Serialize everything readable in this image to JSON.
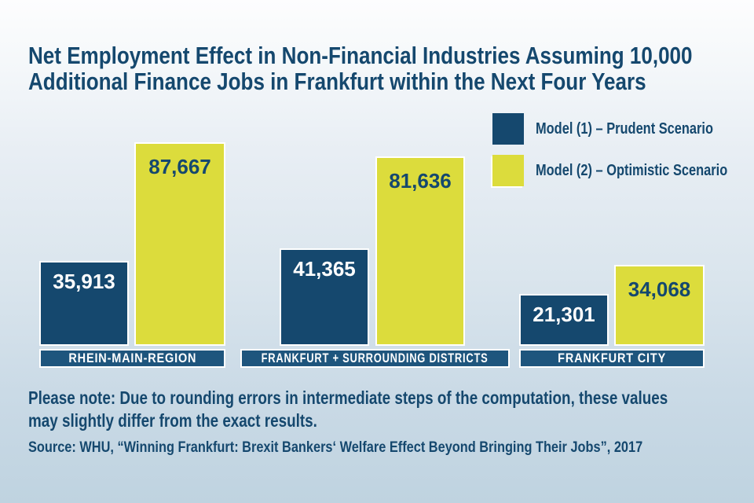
{
  "header": {
    "title_lines": [
      "Net Employment Effect in Non-Financial Industries Assuming 10,000",
      "Additional Finance Jobs in Frankfurt within the Next Four Years"
    ]
  },
  "legend": {
    "items": [
      {
        "label": "Model (1) – Prudent Scenario"
      },
      {
        "label": "Model (2) – Optimistic Scenario"
      }
    ]
  },
  "chart_data": {
    "type": "bar",
    "title": "Net Employment Effect in Non-Financial Industries Assuming 10,000 Additional Finance Jobs in Frankfurt within the Next Four Years",
    "categories": [
      "RHEIN-MAIN-REGION",
      "FRANKFURT + SURROUNDING DISTRICTS",
      "FRANKFURT CITY"
    ],
    "series": [
      {
        "name": "Model (1) – Prudent Scenario",
        "color": "#15486e",
        "values": [
          35913,
          41365,
          21301
        ],
        "value_labels": [
          "35,913",
          "41,365",
          "21,301"
        ]
      },
      {
        "name": "Model (2) – Optimistic Scenario",
        "color": "#dcdc3c",
        "values": [
          87667,
          81636,
          34068
        ],
        "value_labels": [
          "87,667",
          "81,636",
          "34,068"
        ]
      }
    ],
    "ylim": [
      0,
      90000
    ],
    "grid": false,
    "axes_visible": false,
    "legend_position": "top-right",
    "value_label_position": "inside-top"
  },
  "footnote": {
    "note_lines": [
      "Please note: Due to rounding errors in intermediate steps of the computation, these values",
      "may slightly differ from the exact results."
    ],
    "source": "Source: WHU, “Winning Frankfurt: Brexit Bankers‘ Welfare Effect Beyond Bringing Their Jobs”, 2017"
  },
  "colors": {
    "navy": "#15486e",
    "band_navy": "#1e557d",
    "yellow": "#dcdc3c",
    "background_bottom": "#bfd3e0"
  }
}
